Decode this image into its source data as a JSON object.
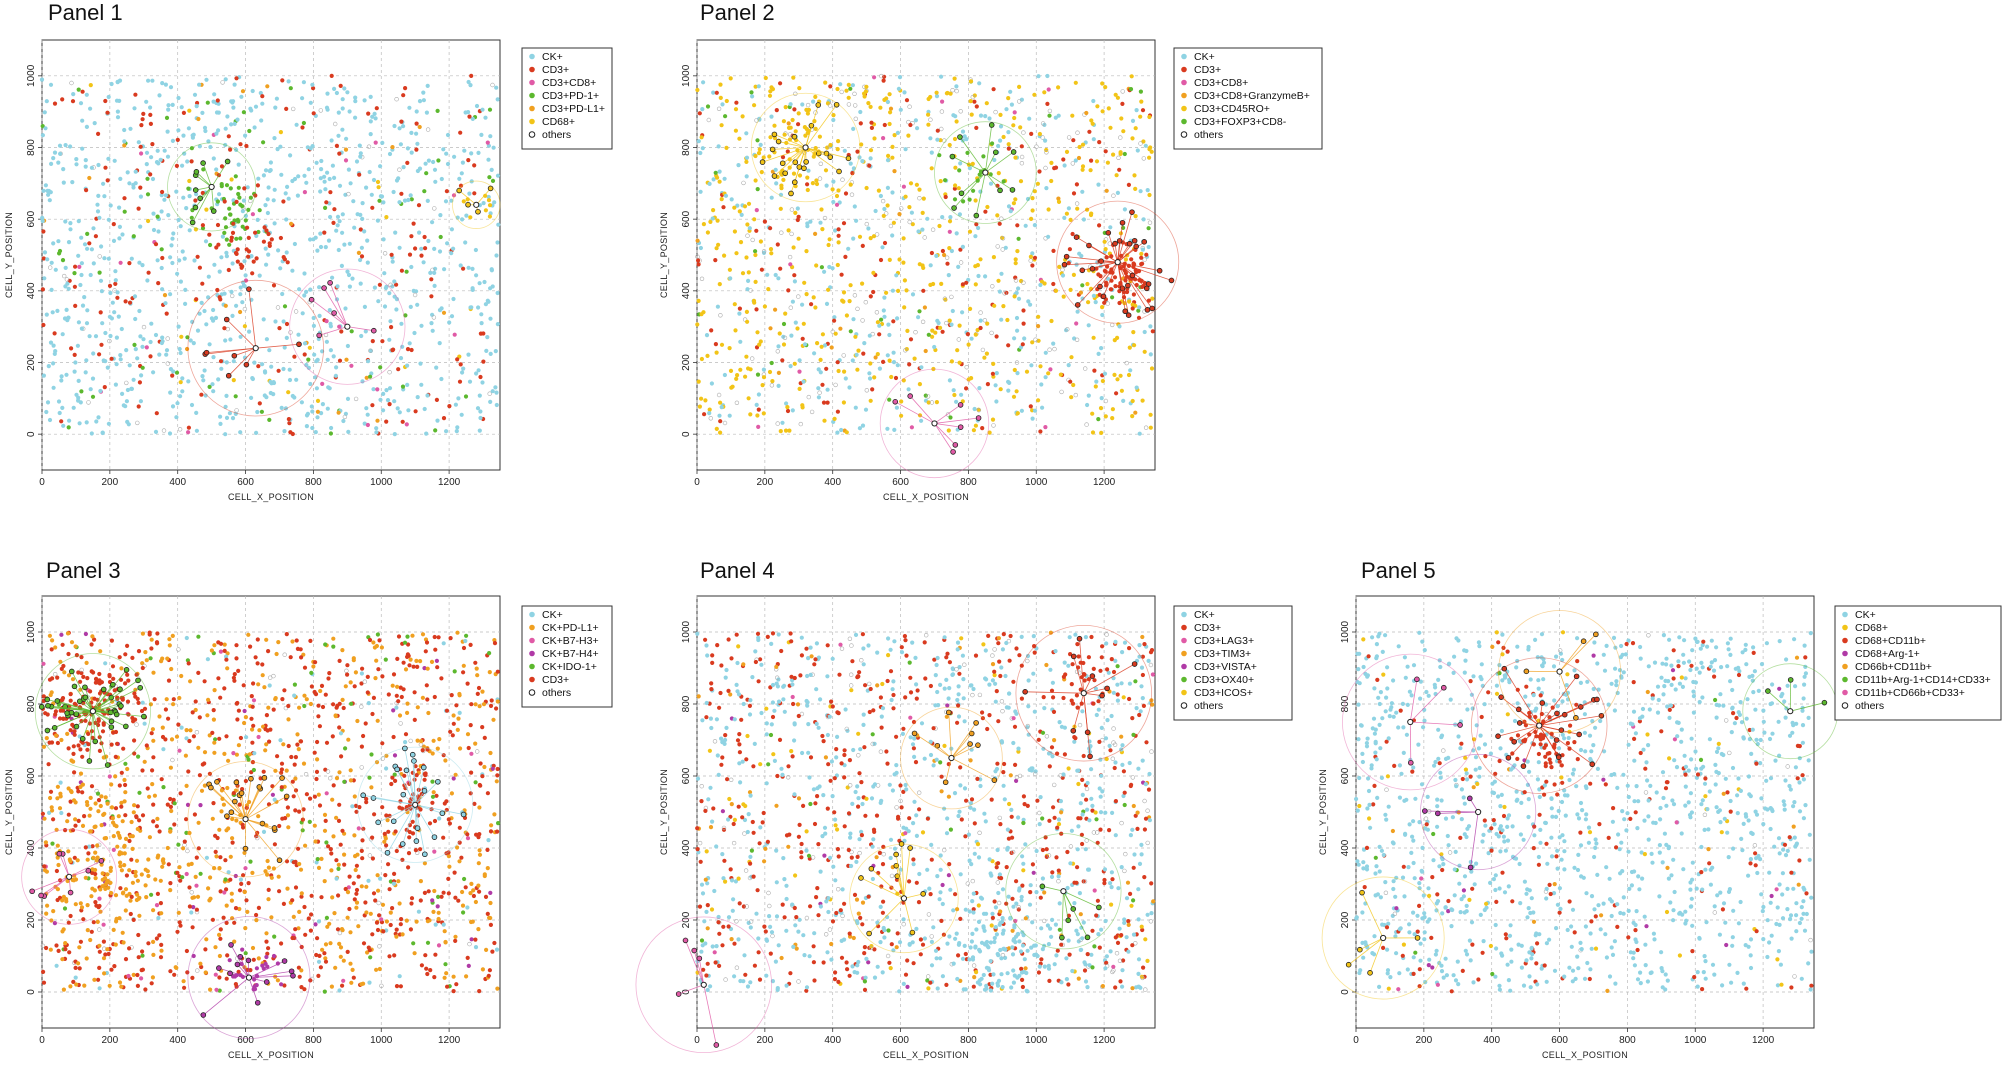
{
  "figure": {
    "background": "#ffffff"
  },
  "chart_data": [
    {
      "type": "scatter",
      "title": "Panel 1",
      "xlabel": "CELL_X_POSITION",
      "ylabel": "CELL_Y_POSITION",
      "xlim": [
        0,
        1350
      ],
      "ylim": [
        -100,
        1100
      ],
      "xticks": [
        "0",
        "200",
        "400",
        "600",
        "800",
        "1000",
        "1200"
      ],
      "yticks": [
        "0",
        "200",
        "400",
        "600",
        "800",
        "1000"
      ],
      "grid": true,
      "legend_position": "right",
      "series": [
        {
          "name": "CK+",
          "color": "#8fd3e3"
        },
        {
          "name": "CD3+",
          "color": "#d93a1f"
        },
        {
          "name": "CD3+CD8+",
          "color": "#e05aa6"
        },
        {
          "name": "CD3+PD-1+",
          "color": "#5cb82e"
        },
        {
          "name": "CD3+PD-L1+",
          "color": "#f0a020"
        },
        {
          "name": "CD68+",
          "color": "#f2c417"
        },
        {
          "name": "others",
          "color": "#555555",
          "hollow": true
        }
      ],
      "mix": [
        0.72,
        0.14,
        0.02,
        0.04,
        0.02,
        0.02,
        0.04
      ],
      "clusters": [
        {
          "x": 560,
          "y": 620,
          "r": 90,
          "series": 3,
          "n": 40
        },
        {
          "x": 600,
          "y": 550,
          "r": 120,
          "series": 1,
          "n": 40
        },
        {
          "x": 1280,
          "y": 640,
          "r": 60,
          "series": 5,
          "n": 8
        }
      ],
      "hubs": [
        {
          "x": 500,
          "y": 690,
          "r": 130,
          "series": 3,
          "n": 9
        },
        {
          "x": 630,
          "y": 240,
          "r": 200,
          "series": 1,
          "n": 8
        },
        {
          "x": 900,
          "y": 300,
          "r": 170,
          "series": 2,
          "n": 6
        },
        {
          "x": 1280,
          "y": 640,
          "r": 70,
          "series": 5,
          "n": 4
        }
      ],
      "n_points": 1300
    },
    {
      "type": "scatter",
      "title": "Panel 2",
      "xlabel": "CELL_X_POSITION",
      "ylabel": "CELL_Y_POSITION",
      "xlim": [
        0,
        1350
      ],
      "ylim": [
        -100,
        1100
      ],
      "xticks": [
        "0",
        "200",
        "400",
        "600",
        "800",
        "1000",
        "1200"
      ],
      "yticks": [
        "0",
        "200",
        "400",
        "600",
        "800",
        "1000"
      ],
      "grid": true,
      "legend_position": "right",
      "series": [
        {
          "name": "CK+",
          "color": "#8fd3e3"
        },
        {
          "name": "CD3+",
          "color": "#d93a1f"
        },
        {
          "name": "CD3+CD8+",
          "color": "#e05aa6"
        },
        {
          "name": "CD3+CD8+GranzymeB+",
          "color": "#f0a020"
        },
        {
          "name": "CD3+CD45RO+",
          "color": "#f2c417"
        },
        {
          "name": "CD3+FOXP3+CD8-",
          "color": "#5cb82e"
        },
        {
          "name": "others",
          "color": "#555555",
          "hollow": true
        }
      ],
      "mix": [
        0.28,
        0.12,
        0.01,
        0.02,
        0.42,
        0.02,
        0.13
      ],
      "clusters": [
        {
          "x": 1260,
          "y": 430,
          "r": 90,
          "series": 1,
          "n": 70
        },
        {
          "x": 300,
          "y": 780,
          "r": 120,
          "series": 4,
          "n": 40
        },
        {
          "x": 820,
          "y": 720,
          "r": 110,
          "series": 5,
          "n": 15
        }
      ],
      "hubs": [
        {
          "x": 320,
          "y": 800,
          "r": 160,
          "series": 4,
          "n": 22
        },
        {
          "x": 850,
          "y": 730,
          "r": 150,
          "series": 5,
          "n": 10
        },
        {
          "x": 1240,
          "y": 480,
          "r": 180,
          "series": 1,
          "n": 30
        },
        {
          "x": 700,
          "y": 30,
          "r": 160,
          "series": 2,
          "n": 7
        }
      ],
      "n_points": 1300
    },
    {
      "type": "scatter",
      "title": "Panel 3",
      "xlabel": "CELL_X_POSITION",
      "ylabel": "CELL_Y_POSITION",
      "xlim": [
        0,
        1350
      ],
      "ylim": [
        -100,
        1100
      ],
      "xticks": [
        "0",
        "200",
        "400",
        "600",
        "800",
        "1000",
        "1200"
      ],
      "yticks": [
        "0",
        "200",
        "400",
        "600",
        "800",
        "1000"
      ],
      "grid": true,
      "legend_position": "right",
      "series": [
        {
          "name": "CK+",
          "color": "#8fd3e3"
        },
        {
          "name": "CK+PD-L1+",
          "color": "#f0a020"
        },
        {
          "name": "CK+B7-H3+",
          "color": "#e05aa6"
        },
        {
          "name": "CK+B7-H4+",
          "color": "#b03aa6"
        },
        {
          "name": "CK+IDO-1+",
          "color": "#5cb82e"
        },
        {
          "name": "CD3+",
          "color": "#d93a1f"
        },
        {
          "name": "others",
          "color": "#555555",
          "hollow": true
        }
      ],
      "mix": [
        0.05,
        0.36,
        0.02,
        0.02,
        0.05,
        0.46,
        0.04
      ],
      "clusters": [
        {
          "x": 150,
          "y": 800,
          "r": 130,
          "series": 5,
          "n": 110
        },
        {
          "x": 1100,
          "y": 500,
          "r": 100,
          "series": 5,
          "n": 40
        },
        {
          "x": 620,
          "y": 60,
          "r": 60,
          "series": 3,
          "n": 25
        },
        {
          "x": 200,
          "y": 350,
          "r": 220,
          "series": 1,
          "n": 160
        }
      ],
      "hubs": [
        {
          "x": 150,
          "y": 780,
          "r": 170,
          "series": 4,
          "n": 40
        },
        {
          "x": 600,
          "y": 480,
          "r": 170,
          "series": 1,
          "n": 20
        },
        {
          "x": 1100,
          "y": 520,
          "r": 170,
          "series": 0,
          "n": 22
        },
        {
          "x": 610,
          "y": 40,
          "r": 180,
          "series": 3,
          "n": 12
        },
        {
          "x": 80,
          "y": 320,
          "r": 140,
          "series": 2,
          "n": 8
        }
      ],
      "n_points": 1500
    },
    {
      "type": "scatter",
      "title": "Panel 4",
      "xlabel": "CELL_X_POSITION",
      "ylabel": "CELL_Y_POSITION",
      "xlim": [
        0,
        1350
      ],
      "ylim": [
        -100,
        1100
      ],
      "xticks": [
        "0",
        "200",
        "400",
        "600",
        "800",
        "1000",
        "1200"
      ],
      "yticks": [
        "0",
        "200",
        "400",
        "600",
        "800",
        "1000"
      ],
      "grid": true,
      "legend_position": "right",
      "series": [
        {
          "name": "CK+",
          "color": "#8fd3e3"
        },
        {
          "name": "CD3+",
          "color": "#d93a1f"
        },
        {
          "name": "CD3+LAG3+",
          "color": "#e05aa6"
        },
        {
          "name": "CD3+TIM3+",
          "color": "#f0a020"
        },
        {
          "name": "CD3+VISTA+",
          "color": "#b03aa6"
        },
        {
          "name": "CD3+OX40+",
          "color": "#5cb82e"
        },
        {
          "name": "CD3+ICOS+",
          "color": "#f2c417"
        },
        {
          "name": "others",
          "color": "#555555",
          "hollow": true
        }
      ],
      "mix": [
        0.46,
        0.32,
        0.01,
        0.05,
        0.01,
        0.02,
        0.04,
        0.09
      ],
      "clusters": [
        {
          "x": 1130,
          "y": 860,
          "r": 80,
          "series": 1,
          "n": 20
        },
        {
          "x": 900,
          "y": 100,
          "r": 160,
          "series": 0,
          "n": 120
        }
      ],
      "hubs": [
        {
          "x": 1140,
          "y": 830,
          "r": 200,
          "series": 1,
          "n": 10
        },
        {
          "x": 750,
          "y": 650,
          "r": 150,
          "series": 3,
          "n": 9
        },
        {
          "x": 610,
          "y": 260,
          "r": 160,
          "series": 6,
          "n": 10
        },
        {
          "x": 1080,
          "y": 280,
          "r": 170,
          "series": 5,
          "n": 6
        },
        {
          "x": 20,
          "y": 20,
          "r": 200,
          "series": 2,
          "n": 5
        }
      ],
      "n_points": 1500
    },
    {
      "type": "scatter",
      "title": "Panel 5",
      "xlabel": "CELL_X_POSITION",
      "ylabel": "CELL_Y_POSITION",
      "xlim": [
        0,
        1350
      ],
      "ylim": [
        -100,
        1100
      ],
      "xticks": [
        "0",
        "200",
        "400",
        "600",
        "800",
        "1000",
        "1200"
      ],
      "yticks": [
        "0",
        "200",
        "400",
        "600",
        "800",
        "1000"
      ],
      "grid": true,
      "legend_position": "right",
      "series": [
        {
          "name": "CK+",
          "color": "#8fd3e3"
        },
        {
          "name": "CD68+",
          "color": "#f2c417"
        },
        {
          "name": "CD68+CD11b+",
          "color": "#d93a1f"
        },
        {
          "name": "CD68+Arg-1+",
          "color": "#b03aa6"
        },
        {
          "name": "CD66b+CD11b+",
          "color": "#f0a020"
        },
        {
          "name": "CD11b+Arg-1+CD14+CD33+",
          "color": "#5cb82e"
        },
        {
          "name": "CD11b+CD66b+CD33+",
          "color": "#e05aa6"
        },
        {
          "name": "others",
          "color": "#555555",
          "hollow": true
        }
      ],
      "mix": [
        0.8,
        0.03,
        0.12,
        0.01,
        0.01,
        0.005,
        0.005,
        0.02
      ],
      "clusters": [
        {
          "x": 560,
          "y": 680,
          "r": 110,
          "series": 2,
          "n": 50
        }
      ],
      "hubs": [
        {
          "x": 540,
          "y": 740,
          "r": 200,
          "series": 2,
          "n": 22
        },
        {
          "x": 160,
          "y": 750,
          "r": 200,
          "series": 6,
          "n": 4
        },
        {
          "x": 360,
          "y": 500,
          "r": 170,
          "series": 3,
          "n": 4
        },
        {
          "x": 80,
          "y": 150,
          "r": 180,
          "series": 1,
          "n": 5
        },
        {
          "x": 600,
          "y": 890,
          "r": 180,
          "series": 4,
          "n": 4
        },
        {
          "x": 1280,
          "y": 780,
          "r": 140,
          "series": 5,
          "n": 3
        }
      ],
      "n_points": 1400
    }
  ]
}
